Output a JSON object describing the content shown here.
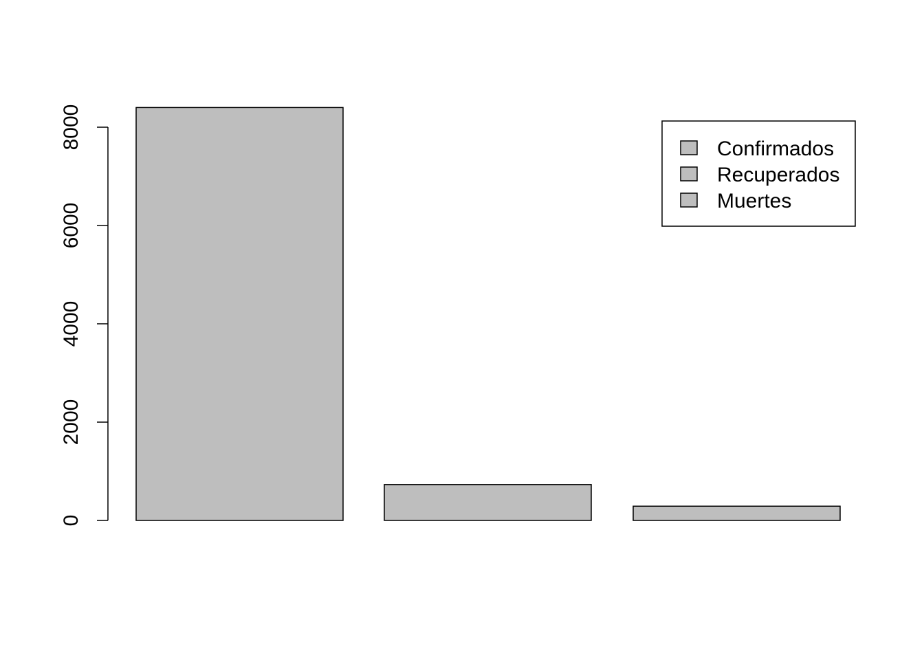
{
  "chart_data": {
    "type": "bar",
    "categories": [
      "Confirmados",
      "Recuperados",
      "Muertes"
    ],
    "values": [
      8400,
      730,
      290
    ],
    "title": "",
    "xlabel": "",
    "ylabel": "",
    "ylim": [
      0,
      8400
    ],
    "yticks": [
      0,
      2000,
      4000,
      6000,
      8000
    ],
    "ytick_labels": [
      "0",
      "2000",
      "4000",
      "6000",
      "8000"
    ],
    "bar_color": "#bebebe",
    "grid": false,
    "legend": {
      "placement": "top-right",
      "entries": [
        "Confirmados",
        "Recuperados",
        "Muertes"
      ]
    }
  }
}
